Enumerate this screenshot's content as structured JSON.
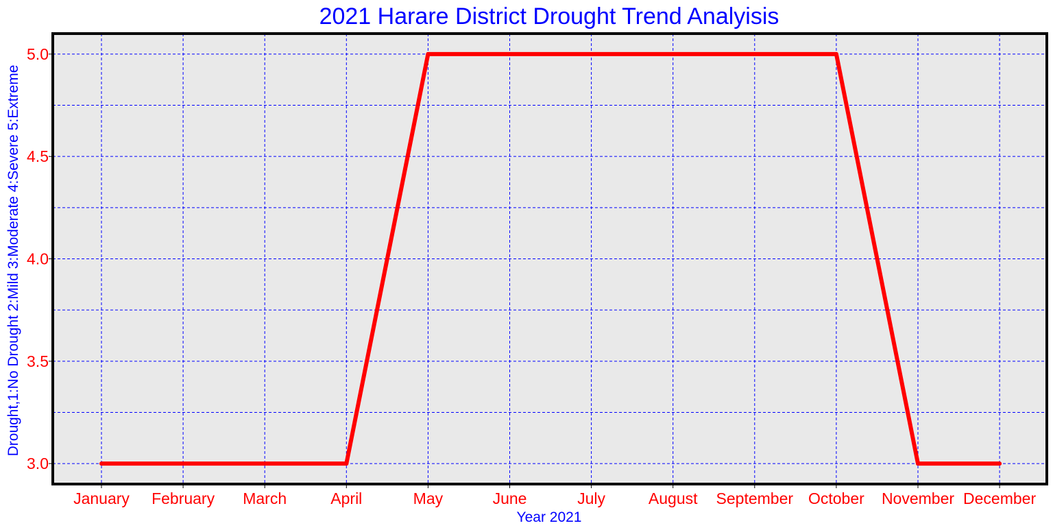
{
  "chart_data": {
    "type": "line",
    "title": "2021 Harare District Drought Trend Analyisis",
    "xlabel": "Year 2021",
    "ylabel": "Drought,1:No Drought 2:Mild 3:Moderate 4:Severe 5:Extreme",
    "categories": [
      "January",
      "February",
      "March",
      "April",
      "May",
      "June",
      "July",
      "August",
      "September",
      "October",
      "November",
      "December"
    ],
    "series": [
      {
        "values": [
          3,
          3,
          3,
          3,
          5,
          5,
          5,
          5,
          5,
          5,
          3,
          3
        ]
      }
    ],
    "ylim": [
      2.9,
      5.1
    ],
    "yticks": [
      "3.0",
      "3.5",
      "4.0",
      "4.5",
      "5.0"
    ],
    "y_gridlines": [
      3.0,
      3.25,
      3.5,
      3.75,
      4.0,
      4.25,
      4.5,
      4.75,
      5.0
    ],
    "grid": true,
    "colors": {
      "line": "#ff0000",
      "grid": "#0000ff",
      "plot_background": "#e9e9e9",
      "frame": "#000000",
      "title": "#0000ff",
      "tick_labels": "#ff0000"
    }
  }
}
